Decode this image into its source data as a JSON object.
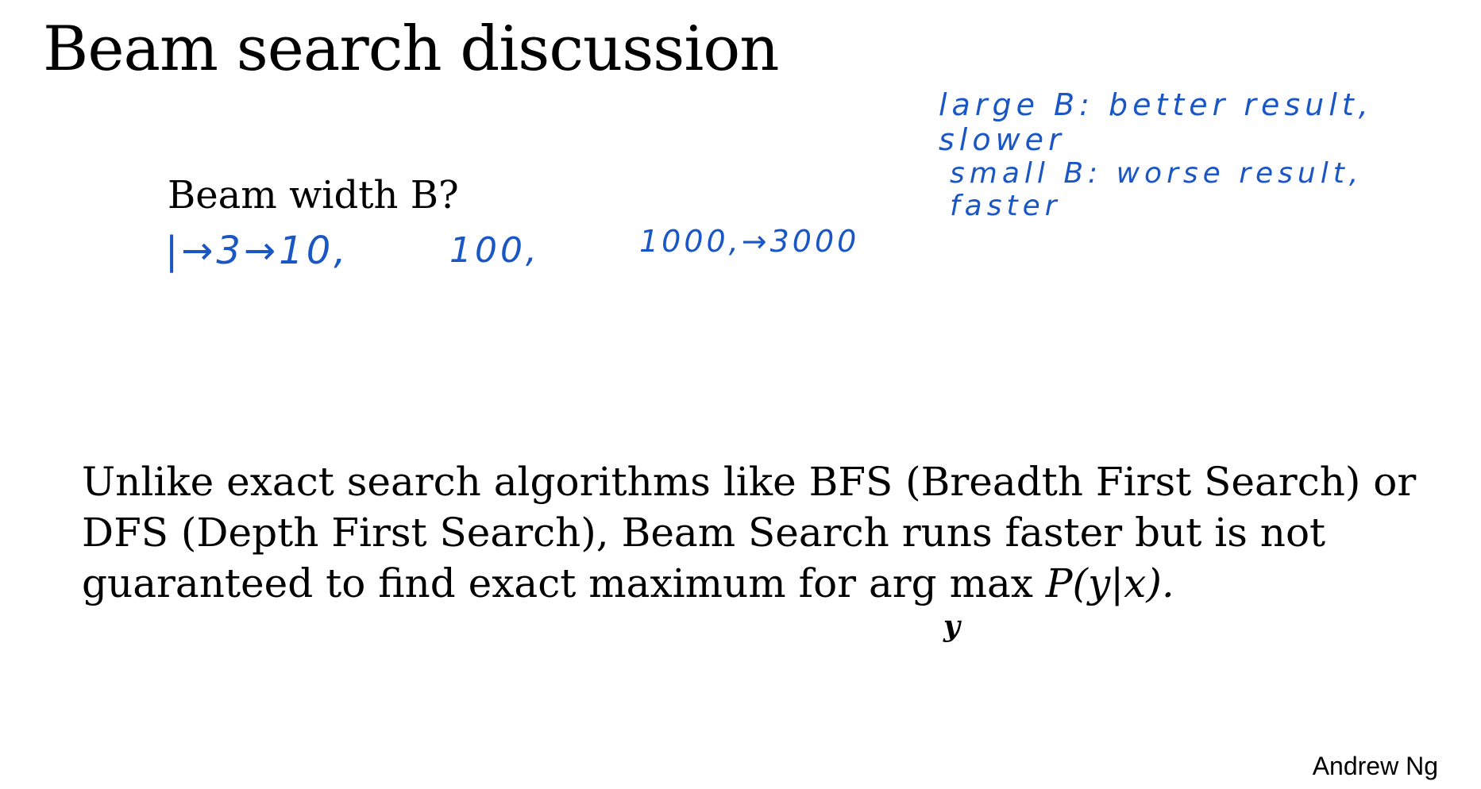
{
  "title": "Beam search discussion",
  "question": "Beam width B?",
  "handwritten": {
    "values_1": "|→3→10,",
    "values_2": "100,",
    "values_3": "1000,→3000",
    "large_b": "large B: better result, slower",
    "small_b": "small B: worse result, faster"
  },
  "body": {
    "line1": "Unlike exact search algorithms like BFS (Breadth First Search) or",
    "line2": "DFS (Depth First Search), Beam Search runs faster but is not",
    "line3_text": "guaranteed to find exact maximum for arg max ",
    "line3_math": "P(y|x).",
    "subscript": "y"
  },
  "author": "Andrew Ng",
  "colors": {
    "ink": "#1a56c4",
    "text": "#000000",
    "background": "#ffffff"
  }
}
